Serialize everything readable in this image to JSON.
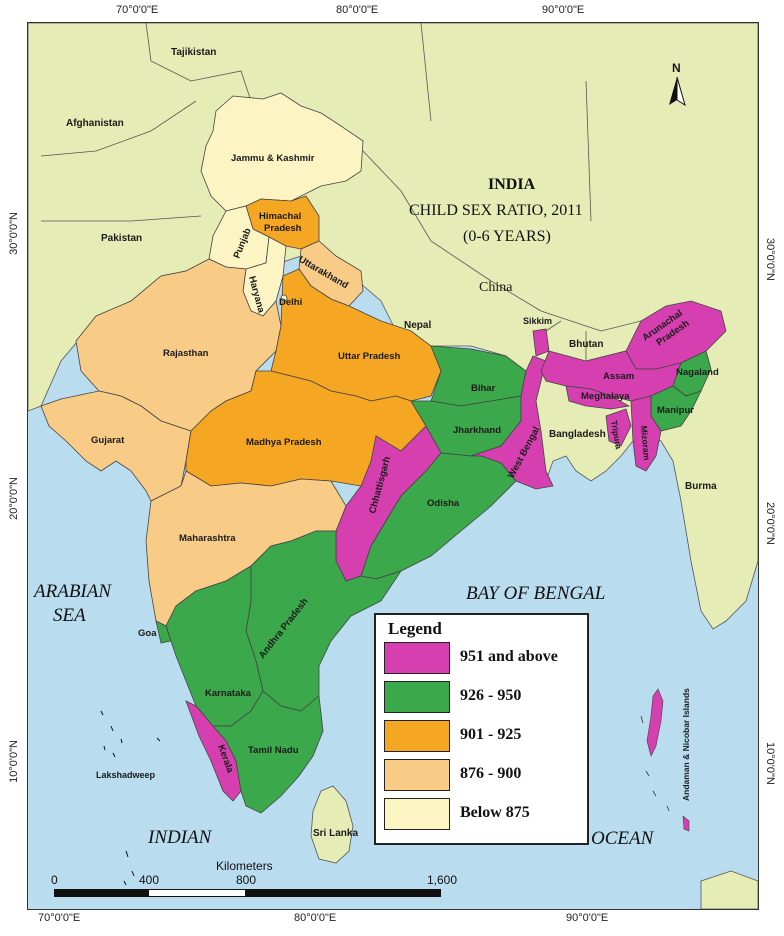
{
  "map": {
    "title": "INDIA",
    "subtitle_line1": "CHILD SEX RATIO, 2011",
    "subtitle_line2": "(0-6 YEARS)",
    "north_label": "N"
  },
  "graticule": {
    "top": [
      "70°0'0\"E",
      "80°0'0\"E",
      "90°0'0\"E"
    ],
    "bottom": [
      "70°0'0\"E",
      "80°0'0\"E",
      "90°0'0\"E"
    ],
    "left": [
      "30°0'0\"N",
      "20°0'0\"N",
      "10°0'0\"N"
    ],
    "right": [
      "30°0'0\"N",
      "20°0'0\"N",
      "10°0'0\"N"
    ]
  },
  "colors": {
    "sea": "#b9dcef",
    "land_other": "#e6ecb6",
    "cls_951_above": "#d63fb0",
    "cls_926_950": "#3aa84b",
    "cls_901_925": "#f5a623",
    "cls_876_900": "#f8cc86",
    "cls_below_875": "#fcf5c3"
  },
  "countries": {
    "tajikistan": "Tajikistan",
    "afghanistan": "Afghanistan",
    "pakistan": "Pakistan",
    "china": "China",
    "nepal": "Nepal",
    "bhutan": "Bhutan",
    "bangladesh": "Bangladesh",
    "burma": "Burma",
    "sri_lanka": "Sri Lanka"
  },
  "states": {
    "jammu_kashmir": "Jammu & Kashmir",
    "himachal_1": "Himachal",
    "himachal_2": "Pradesh",
    "punjab": "Punjab",
    "uttarakhand": "Uttarakhand",
    "haryana": "Haryana",
    "delhi": "Delhi",
    "rajasthan": "Rajasthan",
    "uttar_pradesh": "Uttar Pradesh",
    "bihar": "Bihar",
    "sikkim": "Sikkim",
    "arunachal_1": "Arunachal",
    "arunachal_2": "Pradesh",
    "assam": "Assam",
    "nagaland": "Nagaland",
    "meghalaya": "Meghalaya",
    "manipur": "Manipur",
    "tripura": "Tripura",
    "mizoram": "Mizoram",
    "gujarat": "Gujarat",
    "madhya_pradesh": "Madhya Pradesh",
    "jharkhand": "Jharkhand",
    "west_bengal": "West Bengal",
    "chhattisgarh": "Chhattisgarh",
    "odisha": "Odisha",
    "maharashtra": "Maharashtra",
    "goa": "Goa",
    "andhra_pradesh": "Andhra Pradesh",
    "karnataka": "Karnataka",
    "tamil_nadu": "Tamil Nadu",
    "kerala": "Kerala",
    "lakshadweep": "Lakshadweep",
    "andaman": "Andaman & Nicobar Islands"
  },
  "seas": {
    "arabian_1": "ARABIAN",
    "arabian_2": "SEA",
    "bay_of_bengal": "BAY OF BENGAL",
    "indian": "INDIAN",
    "ocean": "OCEAN"
  },
  "legend": {
    "title": "Legend",
    "items": [
      {
        "label": "951 and above",
        "color": "#d63fb0"
      },
      {
        "label": "926 - 950",
        "color": "#3aa84b"
      },
      {
        "label": "901 - 925",
        "color": "#f5a623"
      },
      {
        "label": "876 - 900",
        "color": "#f8cc86"
      },
      {
        "label": "Below 875",
        "color": "#fcf5c3"
      }
    ]
  },
  "scale": {
    "title": "Kilometers",
    "ticks": [
      "0",
      "400",
      "800",
      "1,600"
    ]
  }
}
